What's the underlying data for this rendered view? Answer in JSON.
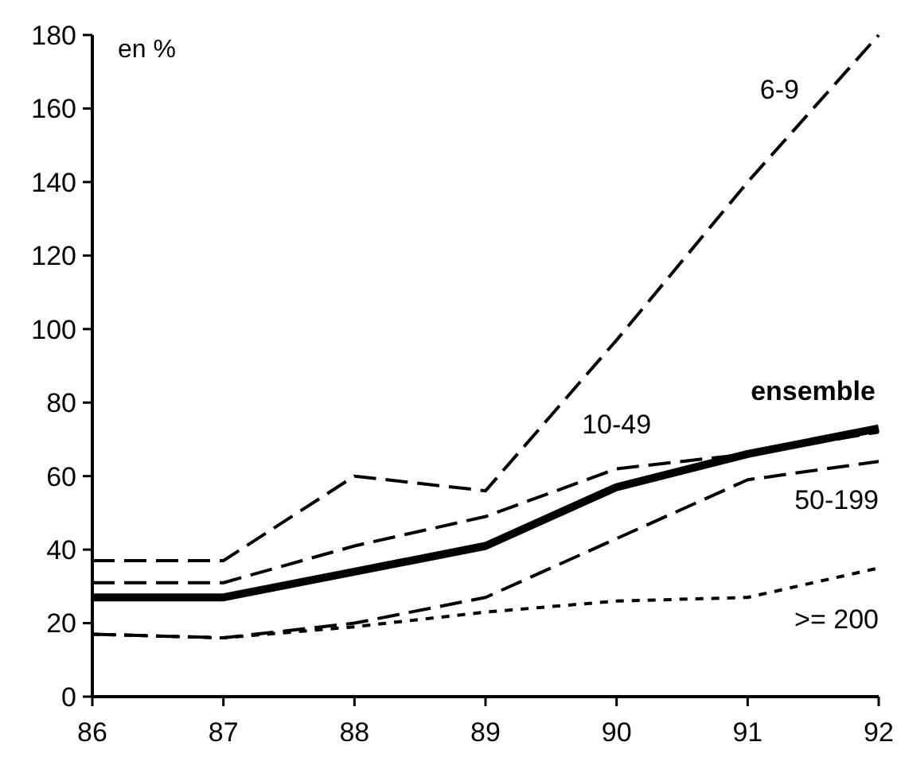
{
  "chart_data": {
    "type": "line",
    "ylabel": "en %",
    "x": [
      86,
      87,
      88,
      89,
      90,
      91,
      92
    ],
    "xlim": [
      86,
      92
    ],
    "xticks": [
      86,
      87,
      88,
      89,
      90,
      91,
      92
    ],
    "ylim": [
      0,
      180
    ],
    "yticks": [
      0,
      20,
      40,
      60,
      80,
      100,
      120,
      140,
      160,
      180
    ],
    "grid": false,
    "marker": "none",
    "series": [
      {
        "name": "6-9",
        "color": "#000000",
        "line_style": "dashed",
        "values": [
          37,
          37,
          60,
          56,
          97,
          140,
          180
        ]
      },
      {
        "name": "ensemble",
        "color": "#000000",
        "line_style": "solid",
        "values": [
          27,
          27,
          34,
          41,
          57,
          66,
          73
        ]
      },
      {
        "name": "10-49",
        "color": "#000000",
        "line_style": "dashed",
        "values": [
          31,
          31,
          41,
          49,
          62,
          66,
          72
        ]
      },
      {
        "name": "50-199",
        "color": "#000000",
        "line_style": "dashed",
        "values": [
          17,
          16,
          20,
          27,
          43,
          59,
          64
        ]
      },
      {
        "name": ">= 200",
        "color": "#000000",
        "line_style": "dotted",
        "values": [
          17,
          16,
          19,
          23,
          26,
          27,
          35
        ]
      }
    ]
  }
}
